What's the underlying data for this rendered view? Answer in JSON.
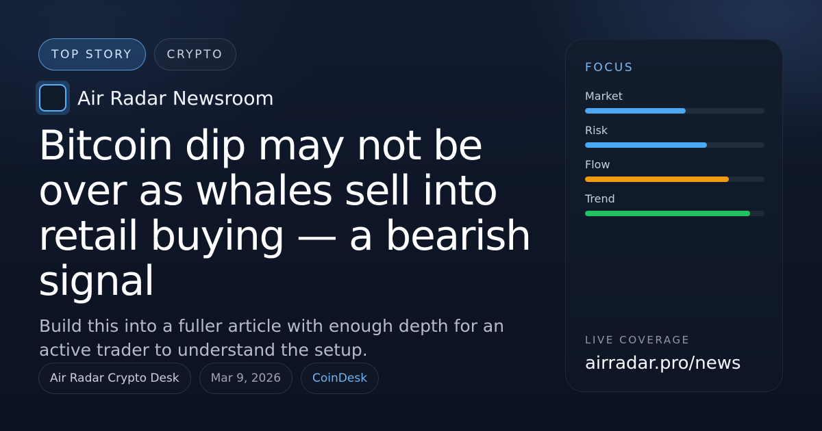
{
  "tags": [
    {
      "label": "TOP STORY",
      "kind": "primary"
    },
    {
      "label": "CRYPTO",
      "kind": "secondary"
    }
  ],
  "brand": {
    "icon": "app-logo-icon",
    "name": "Air Radar Newsroom"
  },
  "headline": "Bitcoin dip may not be over as whales sell into retail buying — a bearish signal",
  "dek": "Build this into a fuller article with enough depth for an active trader to understand the setup.",
  "meta": {
    "author": "Air Radar Crypto Desk",
    "date": "Mar 9, 2026",
    "source": "CoinDesk"
  },
  "focus_card": {
    "title": "FOCUS",
    "metrics": [
      {
        "label": "Market",
        "level": 0.56,
        "color": "#4aa9f2"
      },
      {
        "label": "Risk",
        "level": 0.68,
        "color": "#4aa9f2"
      },
      {
        "label": "Flow",
        "level": 0.8,
        "color": "#f29b12"
      },
      {
        "label": "Trend",
        "level": 0.92,
        "color": "#22c35e"
      }
    ],
    "footer_label": "LIVE COVERAGE",
    "footer_url": "airradar.pro/news"
  },
  "colors": {
    "background": "#0e1627",
    "accent": "#4aa9f2",
    "primary_tag_border": "#60a5e6"
  }
}
